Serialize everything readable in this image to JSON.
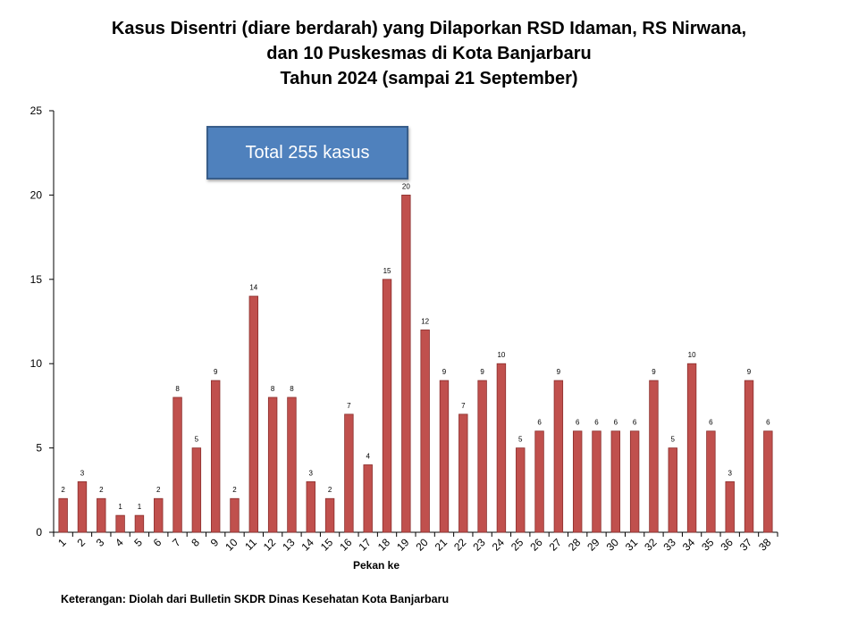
{
  "title_lines": [
    "Kasus Disentri (diare berdarah) yang Dilaporkan RSD Idaman, RS Nirwana,",
    "dan 10 Puskesmas di Kota Banjarbaru",
    "Tahun 2024 (sampai 21 September)"
  ],
  "annotation_box": "Total 255 kasus",
  "footnote": "Keterangan: Diolah dari Bulletin SKDR Dinas Kesehatan Kota Banjarbaru",
  "colors": {
    "bar": "#c0504d",
    "bar_border": "#8b2e2c",
    "annotation_fill": "#4f81bd"
  },
  "chart_data": {
    "type": "bar",
    "title": "Kasus Disentri (diare berdarah) yang Dilaporkan RSD Idaman, RS Nirwana, dan 10 Puskesmas di Kota Banjarbaru Tahun 2024 (sampai 21 September)",
    "xlabel": "Pekan ke",
    "ylabel": "",
    "ylim": [
      0,
      25
    ],
    "yticks": [
      0,
      5,
      10,
      15,
      20,
      25
    ],
    "grid": false,
    "legend": "none",
    "categories": [
      "1",
      "2",
      "3",
      "4",
      "5",
      "6",
      "7",
      "8",
      "9",
      "10",
      "11",
      "12",
      "13",
      "14",
      "15",
      "16",
      "17",
      "18",
      "19",
      "20",
      "21",
      "22",
      "23",
      "24",
      "25",
      "26",
      "27",
      "28",
      "29",
      "30",
      "31",
      "32",
      "33",
      "34",
      "35",
      "36",
      "37",
      "38"
    ],
    "values": [
      2,
      3,
      2,
      1,
      1,
      2,
      8,
      5,
      9,
      2,
      14,
      8,
      8,
      3,
      2,
      7,
      4,
      15,
      20,
      12,
      9,
      7,
      9,
      10,
      5,
      6,
      9,
      6,
      6,
      6,
      6,
      9,
      5,
      10,
      6,
      3,
      9,
      6
    ]
  }
}
